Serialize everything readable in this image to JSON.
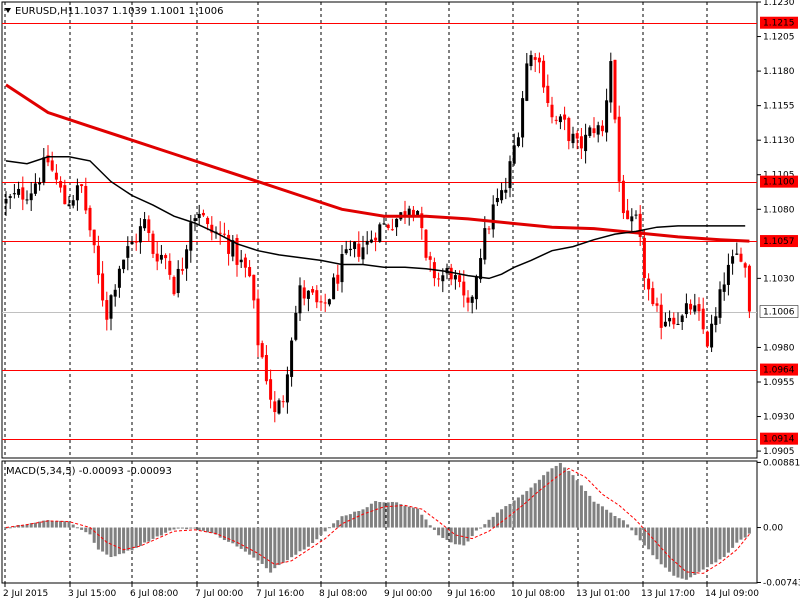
{
  "header": {
    "title": "EURUSD,H1",
    "ohlc": "1.1037 1.1039 1.1001 1.1006"
  },
  "macd": {
    "title": "MACD(5,34,5) -0.00093 -0.00093",
    "scale_labels": [
      "0.00881",
      "0.00",
      "-0.00743"
    ],
    "ylim": [
      -0.0075,
      0.009
    ]
  },
  "colors": {
    "up": "#000000",
    "down": "#ff0000",
    "ma_slow": "#e00000",
    "ma_fast": "#000000",
    "level_line": "#ff0000",
    "level_tag_bg": "#ff0000",
    "level_tag_text": "#ffffff",
    "grid": "#000000",
    "histogram": "#808080",
    "signal": "#ff0000"
  },
  "chart_data": [
    {
      "type": "candlestick",
      "title": "EURUSD,H1",
      "ylim": [
        1.09,
        1.123
      ],
      "y_ticks": [
        "1.1230",
        "1.1205",
        "1.1180",
        "1.1155",
        "1.1130",
        "1.1105",
        "1.1080",
        "1.1030",
        "1.0980",
        "1.0955",
        "1.0930",
        "1.0905"
      ],
      "x_ticks": [
        "2 Jul 2015",
        "3 Jul 15:00",
        "6 Jul 08:00",
        "7 Jul 00:00",
        "7 Jul 16:00",
        "8 Jul 08:00",
        "9 Jul 00:00",
        "9 Jul 16:00",
        "10 Jul 08:00",
        "13 Jul 01:00",
        "13 Jul 17:00",
        "14 Jul 09:00"
      ],
      "levels": [
        {
          "price": 1.1215,
          "label": "1.1215"
        },
        {
          "price": 1.11,
          "label": "1.1100"
        },
        {
          "price": 1.1057,
          "label": "1.1057"
        },
        {
          "price": 1.0964,
          "label": "1.0964"
        },
        {
          "price": 1.0914,
          "label": "1.0914"
        }
      ],
      "current_price": {
        "price": 1.1006,
        "label": "1.1006"
      },
      "close_path": [
        [
          0,
          1.1085
        ],
        [
          6,
          1.1095
        ],
        [
          10,
          1.1115
        ],
        [
          14,
          1.1085
        ],
        [
          18,
          1.1095
        ],
        [
          20,
          1.1065
        ],
        [
          22,
          1.103
        ],
        [
          24,
          1.1005
        ],
        [
          27,
          1.104
        ],
        [
          30,
          1.1055
        ],
        [
          33,
          1.107
        ],
        [
          35,
          1.105
        ],
        [
          38,
          1.1045
        ],
        [
          40,
          1.1025
        ],
        [
          42,
          1.104
        ],
        [
          44,
          1.1075
        ],
        [
          46,
          1.108
        ],
        [
          48,
          1.1065
        ],
        [
          52,
          1.106
        ],
        [
          55,
          1.1045
        ],
        [
          58,
          1.103
        ],
        [
          60,
          1.0985
        ],
        [
          62,
          1.096
        ],
        [
          64,
          1.093
        ],
        [
          66,
          1.0945
        ],
        [
          68,
          1.099
        ],
        [
          70,
          1.102
        ],
        [
          73,
          1.1015
        ],
        [
          75,
          1.1005
        ],
        [
          78,
          1.1025
        ],
        [
          80,
          1.104
        ],
        [
          83,
          1.105
        ],
        [
          86,
          1.1055
        ],
        [
          88,
          1.1065
        ],
        [
          91,
          1.107
        ],
        [
          94,
          1.1075
        ],
        [
          96,
          1.1085
        ],
        [
          98,
          1.108
        ],
        [
          100,
          1.104
        ],
        [
          103,
          1.103
        ],
        [
          106,
          1.1035
        ],
        [
          108,
          1.102
        ],
        [
          110,
          1.1005
        ],
        [
          113,
          1.105
        ],
        [
          116,
          1.108
        ],
        [
          119,
          1.1095
        ],
        [
          122,
          1.114
        ],
        [
          124,
          1.1185
        ],
        [
          126,
          1.1195
        ],
        [
          128,
          1.1175
        ],
        [
          130,
          1.1145
        ],
        [
          133,
          1.114
        ],
        [
          136,
          1.1125
        ],
        [
          138,
          1.113
        ],
        [
          140,
          1.114
        ],
        [
          142,
          1.1135
        ],
        [
          144,
          1.119
        ],
        [
          146,
          1.11
        ],
        [
          148,
          1.1065
        ],
        [
          150,
          1.107
        ],
        [
          152,
          1.1035
        ],
        [
          154,
          1.1005
        ],
        [
          156,
          1.1
        ],
        [
          158,
          1.1005
        ],
        [
          161,
          1.1
        ],
        [
          163,
          1.101
        ],
        [
          165,
          1.1
        ],
        [
          167,
          1.0985
        ],
        [
          169,
          1.1
        ],
        [
          171,
          1.103
        ],
        [
          173,
          1.104
        ],
        [
          175,
          1.105
        ],
        [
          176,
          1.1037
        ],
        [
          177,
          1.1006
        ]
      ],
      "ma_slow": [
        [
          0,
          1.117
        ],
        [
          10,
          1.115
        ],
        [
          20,
          1.114
        ],
        [
          30,
          1.113
        ],
        [
          40,
          1.112
        ],
        [
          50,
          1.111
        ],
        [
          60,
          1.11
        ],
        [
          70,
          1.109
        ],
        [
          80,
          1.108
        ],
        [
          90,
          1.1075
        ],
        [
          100,
          1.1075
        ],
        [
          110,
          1.1073
        ],
        [
          120,
          1.107
        ],
        [
          130,
          1.1067
        ],
        [
          140,
          1.1066
        ],
        [
          150,
          1.1063
        ],
        [
          160,
          1.106
        ],
        [
          170,
          1.1058
        ],
        [
          177,
          1.1057
        ]
      ],
      "ma_fast": [
        [
          0,
          1.1115
        ],
        [
          5,
          1.1113
        ],
        [
          10,
          1.1118
        ],
        [
          15,
          1.1118
        ],
        [
          20,
          1.1115
        ],
        [
          25,
          1.11
        ],
        [
          30,
          1.109
        ],
        [
          35,
          1.1083
        ],
        [
          40,
          1.1075
        ],
        [
          45,
          1.107
        ],
        [
          50,
          1.1063
        ],
        [
          55,
          1.1055
        ],
        [
          60,
          1.105
        ],
        [
          65,
          1.1047
        ],
        [
          70,
          1.1045
        ],
        [
          75,
          1.1043
        ],
        [
          80,
          1.104
        ],
        [
          85,
          1.104
        ],
        [
          90,
          1.1038
        ],
        [
          95,
          1.1038
        ],
        [
          100,
          1.1037
        ],
        [
          105,
          1.1035
        ],
        [
          110,
          1.1032
        ],
        [
          115,
          1.103
        ],
        [
          118,
          1.1033
        ],
        [
          121,
          1.1038
        ],
        [
          125,
          1.1043
        ],
        [
          130,
          1.105
        ],
        [
          135,
          1.1053
        ],
        [
          140,
          1.1058
        ],
        [
          145,
          1.1062
        ],
        [
          150,
          1.1064
        ],
        [
          155,
          1.1067
        ],
        [
          160,
          1.1068
        ],
        [
          165,
          1.1068
        ],
        [
          170,
          1.1068
        ],
        [
          176,
          1.1068
        ]
      ]
    },
    {
      "type": "bar",
      "title": "MACD(5,34,5)",
      "ylim": [
        -0.0075,
        0.009
      ],
      "hist_path": [
        [
          0,
          0.0
        ],
        [
          5,
          0.0005
        ],
        [
          10,
          0.001
        ],
        [
          15,
          0.0008
        ],
        [
          20,
          -0.001
        ],
        [
          22,
          -0.003
        ],
        [
          25,
          -0.004
        ],
        [
          30,
          -0.003
        ],
        [
          35,
          -0.0015
        ],
        [
          40,
          -0.0002
        ],
        [
          45,
          -0.0001
        ],
        [
          50,
          -0.001
        ],
        [
          55,
          -0.0025
        ],
        [
          60,
          -0.0045
        ],
        [
          63,
          -0.006
        ],
        [
          65,
          -0.005
        ],
        [
          68,
          -0.004
        ],
        [
          72,
          -0.0025
        ],
        [
          75,
          -0.001
        ],
        [
          80,
          0.0015
        ],
        [
          85,
          0.0025
        ],
        [
          88,
          0.0035
        ],
        [
          92,
          0.0035
        ],
        [
          95,
          0.003
        ],
        [
          98,
          0.0025
        ],
        [
          100,
          0.001
        ],
        [
          103,
          -0.001
        ],
        [
          106,
          -0.002
        ],
        [
          109,
          -0.0025
        ],
        [
          112,
          -0.0005
        ],
        [
          115,
          0.001
        ],
        [
          118,
          0.0025
        ],
        [
          122,
          0.004
        ],
        [
          126,
          0.006
        ],
        [
          129,
          0.0075
        ],
        [
          132,
          0.0088
        ],
        [
          135,
          0.007
        ],
        [
          138,
          0.005
        ],
        [
          140,
          0.0035
        ],
        [
          143,
          0.0025
        ],
        [
          145,
          0.0015
        ],
        [
          147,
          0.001
        ],
        [
          150,
          -0.001
        ],
        [
          153,
          -0.003
        ],
        [
          156,
          -0.005
        ],
        [
          159,
          -0.0065
        ],
        [
          162,
          -0.007
        ],
        [
          165,
          -0.006
        ],
        [
          168,
          -0.005
        ],
        [
          171,
          -0.004
        ],
        [
          174,
          -0.002
        ],
        [
          177,
          -0.0009
        ]
      ],
      "signal_path": [
        [
          0,
          0.0
        ],
        [
          5,
          0.0004
        ],
        [
          10,
          0.0009
        ],
        [
          15,
          0.0008
        ],
        [
          20,
          0.0
        ],
        [
          24,
          -0.002
        ],
        [
          28,
          -0.003
        ],
        [
          32,
          -0.0025
        ],
        [
          36,
          -0.0015
        ],
        [
          40,
          -0.0005
        ],
        [
          45,
          -0.0003
        ],
        [
          50,
          -0.0008
        ],
        [
          55,
          -0.002
        ],
        [
          60,
          -0.0035
        ],
        [
          64,
          -0.005
        ],
        [
          68,
          -0.0045
        ],
        [
          72,
          -0.003
        ],
        [
          76,
          -0.0015
        ],
        [
          80,
          0.0005
        ],
        [
          85,
          0.0018
        ],
        [
          90,
          0.0028
        ],
        [
          95,
          0.003
        ],
        [
          99,
          0.0025
        ],
        [
          103,
          0.0008
        ],
        [
          107,
          -0.001
        ],
        [
          111,
          -0.0015
        ],
        [
          115,
          -0.0005
        ],
        [
          119,
          0.0012
        ],
        [
          123,
          0.003
        ],
        [
          127,
          0.005
        ],
        [
          131,
          0.0068
        ],
        [
          134,
          0.008
        ],
        [
          138,
          0.0068
        ],
        [
          142,
          0.0045
        ],
        [
          146,
          0.003
        ],
        [
          150,
          0.001
        ],
        [
          154,
          -0.0015
        ],
        [
          158,
          -0.004
        ],
        [
          162,
          -0.006
        ],
        [
          166,
          -0.0062
        ],
        [
          170,
          -0.0048
        ],
        [
          174,
          -0.003
        ],
        [
          177,
          -0.0009
        ]
      ]
    }
  ]
}
